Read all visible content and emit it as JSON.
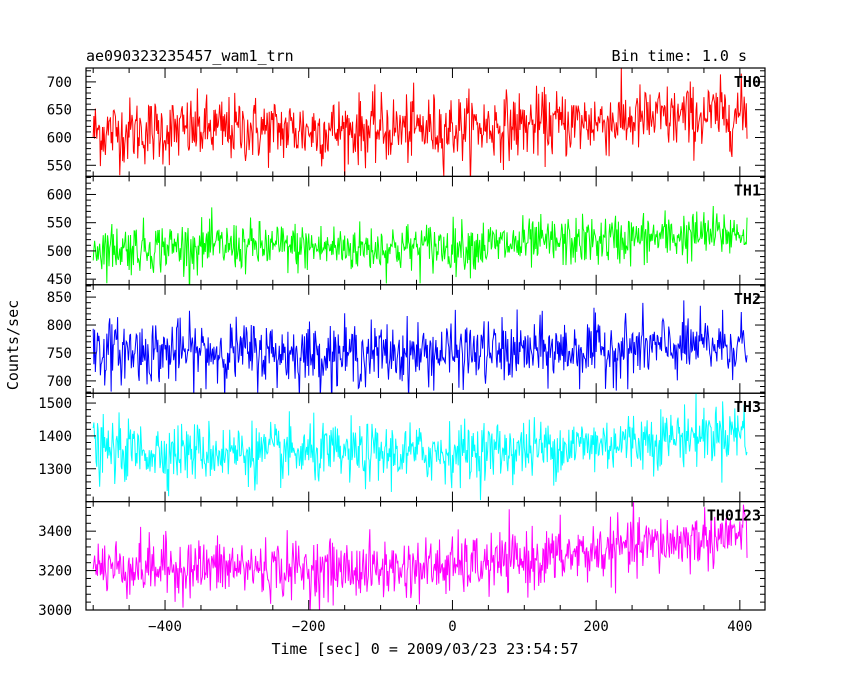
{
  "header": {
    "title": "ae090323235457_wam1_trn",
    "bin_time": "Bin time: 1.0 s"
  },
  "chart_data": {
    "type": "line",
    "title": "ae090323235457_wam1_trn",
    "subtitle": "Bin time: 1.0 s",
    "xlabel": "Time [sec] 0 = 2009/03/23 23:54:57",
    "ylabel": "Counts/sec",
    "xlim": [
      -510,
      435
    ],
    "x_ticks": [
      "−400",
      "−200",
      "0",
      "200",
      "400"
    ],
    "x_tick_values": [
      -400,
      -200,
      0,
      200,
      400
    ],
    "grid": false,
    "panels": [
      {
        "name": "TH0",
        "color": "#ff0000",
        "ylim": [
          530,
          725
        ],
        "y_ticks": [
          "700",
          "650",
          "600",
          "550"
        ],
        "y_tick_values": [
          700,
          650,
          600,
          550
        ],
        "x": [
          -500,
          -400,
          -300,
          -200,
          -100,
          0,
          100,
          200,
          300,
          400,
          410
        ],
        "values": [
          610,
          612,
          615,
          613,
          614,
          617,
          622,
          628,
          635,
          642,
          645
        ],
        "noise": 30
      },
      {
        "name": "TH1",
        "color": "#00ff00",
        "ylim": [
          440,
          632
        ],
        "y_ticks": [
          "600",
          "550",
          "500",
          "450"
        ],
        "y_tick_values": [
          600,
          550,
          500,
          450
        ],
        "x": [
          -500,
          -400,
          -300,
          -200,
          -100,
          0,
          100,
          200,
          300,
          400,
          410
        ],
        "values": [
          505,
          507,
          508,
          506,
          505,
          508,
          512,
          518,
          525,
          532,
          535
        ],
        "noise": 22
      },
      {
        "name": "TH2",
        "color": "#0000ff",
        "ylim": [
          678,
          872
        ],
        "y_ticks": [
          "850",
          "800",
          "750",
          "700"
        ],
        "y_tick_values": [
          850,
          800,
          750,
          700
        ],
        "x": [
          -500,
          -400,
          -300,
          -200,
          -100,
          0,
          100,
          200,
          300,
          400,
          410
        ],
        "values": [
          755,
          752,
          752,
          748,
          748,
          750,
          752,
          755,
          760,
          765,
          768
        ],
        "noise": 28
      },
      {
        "name": "TH3",
        "color": "#00ffff",
        "ylim": [
          1200,
          1530
        ],
        "y_ticks": [
          "1500",
          "1400",
          "1300"
        ],
        "y_tick_values": [
          1500,
          1400,
          1300
        ],
        "x": [
          -500,
          -400,
          -300,
          -200,
          -100,
          0,
          100,
          200,
          300,
          400,
          410
        ],
        "values": [
          1355,
          1352,
          1350,
          1345,
          1345,
          1350,
          1360,
          1375,
          1395,
          1415,
          1420
        ],
        "noise": 45
      },
      {
        "name": "TH0123",
        "color": "#ff00ff",
        "ylim": [
          3000,
          3550
        ],
        "y_ticks": [
          "3400",
          "3200",
          "3000"
        ],
        "y_tick_values": [
          3400,
          3200,
          3000
        ],
        "x": [
          -500,
          -400,
          -300,
          -200,
          -100,
          0,
          100,
          200,
          300,
          400,
          410
        ],
        "values": [
          3220,
          3215,
          3215,
          3205,
          3205,
          3220,
          3250,
          3295,
          3340,
          3385,
          3395
        ],
        "noise": 75
      }
    ]
  }
}
